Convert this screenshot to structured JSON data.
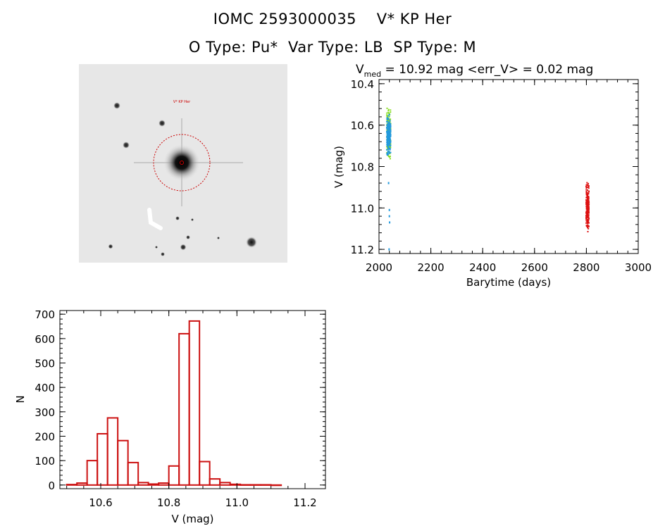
{
  "header": {
    "title_line1": "IOMC 2593000035    V* KP Her",
    "title_line2": "O Type: Pu*  Var Type: LB  SP Type: M"
  },
  "sky_image": {
    "target_label": "V* KP Her",
    "marker_color": "#cc0000"
  },
  "colors": {
    "lc_red": "#dd1111",
    "lc_blue": "#2299dd",
    "lc_green": "#88dd22",
    "hist_red": "#cc1111"
  },
  "chart_data": [
    {
      "type": "scatter",
      "title_prefix": "V",
      "title_subscript": "med",
      "title_rest": " = 10.92 mag <err_V> = 0.02 mag",
      "xlabel": "Barytime (days)",
      "ylabel": "V (mag)",
      "xlim": [
        2000,
        3000
      ],
      "ylim": [
        11.22,
        10.38
      ],
      "x_ticks": [
        2000,
        2200,
        2400,
        2600,
        2800,
        3000
      ],
      "y_ticks": [
        10.4,
        10.6,
        10.8,
        11.0,
        11.2
      ],
      "x_tick_labels": [
        "2000",
        "2200",
        "2400",
        "2600",
        "2800",
        "3000"
      ],
      "y_tick_labels": [
        "10.4",
        "10.6",
        "10.8",
        "11.0",
        "11.2"
      ],
      "series": [
        {
          "color": "#88dd22",
          "x_range": [
            2030,
            2045
          ],
          "y_range": [
            10.5,
            10.78
          ]
        },
        {
          "color": "#2299dd",
          "x_range": [
            2030,
            2045
          ],
          "y_range": [
            10.53,
            10.76
          ],
          "outliers": [
            [
              2037,
              10.88
            ],
            [
              2040,
              11.01
            ],
            [
              2040,
              11.04
            ],
            [
              2041,
              11.07
            ],
            [
              2039,
              11.2
            ]
          ]
        },
        {
          "color": "#dd1111",
          "x_range": [
            2799,
            2810
          ],
          "y_range": [
            10.84,
            11.15
          ]
        }
      ]
    },
    {
      "type": "bar",
      "xlabel": "V (mag)",
      "ylabel": "N",
      "xlim": [
        10.48,
        11.26
      ],
      "ylim": [
        -15,
        715
      ],
      "x_ticks": [
        10.6,
        10.8,
        11.0,
        11.2
      ],
      "y_ticks": [
        0,
        100,
        200,
        300,
        400,
        500,
        600,
        700
      ],
      "x_tick_labels": [
        "10.6",
        "10.8",
        "11.0",
        "11.2"
      ],
      "y_tick_labels": [
        "0",
        "100",
        "200",
        "300",
        "400",
        "500",
        "600",
        "700"
      ],
      "bin_start": 10.5,
      "bin_width": 0.03,
      "values": [
        2,
        8,
        100,
        210,
        275,
        182,
        92,
        10,
        4,
        8,
        78,
        620,
        672,
        96,
        25,
        10,
        3,
        1,
        1,
        1,
        0
      ]
    }
  ]
}
